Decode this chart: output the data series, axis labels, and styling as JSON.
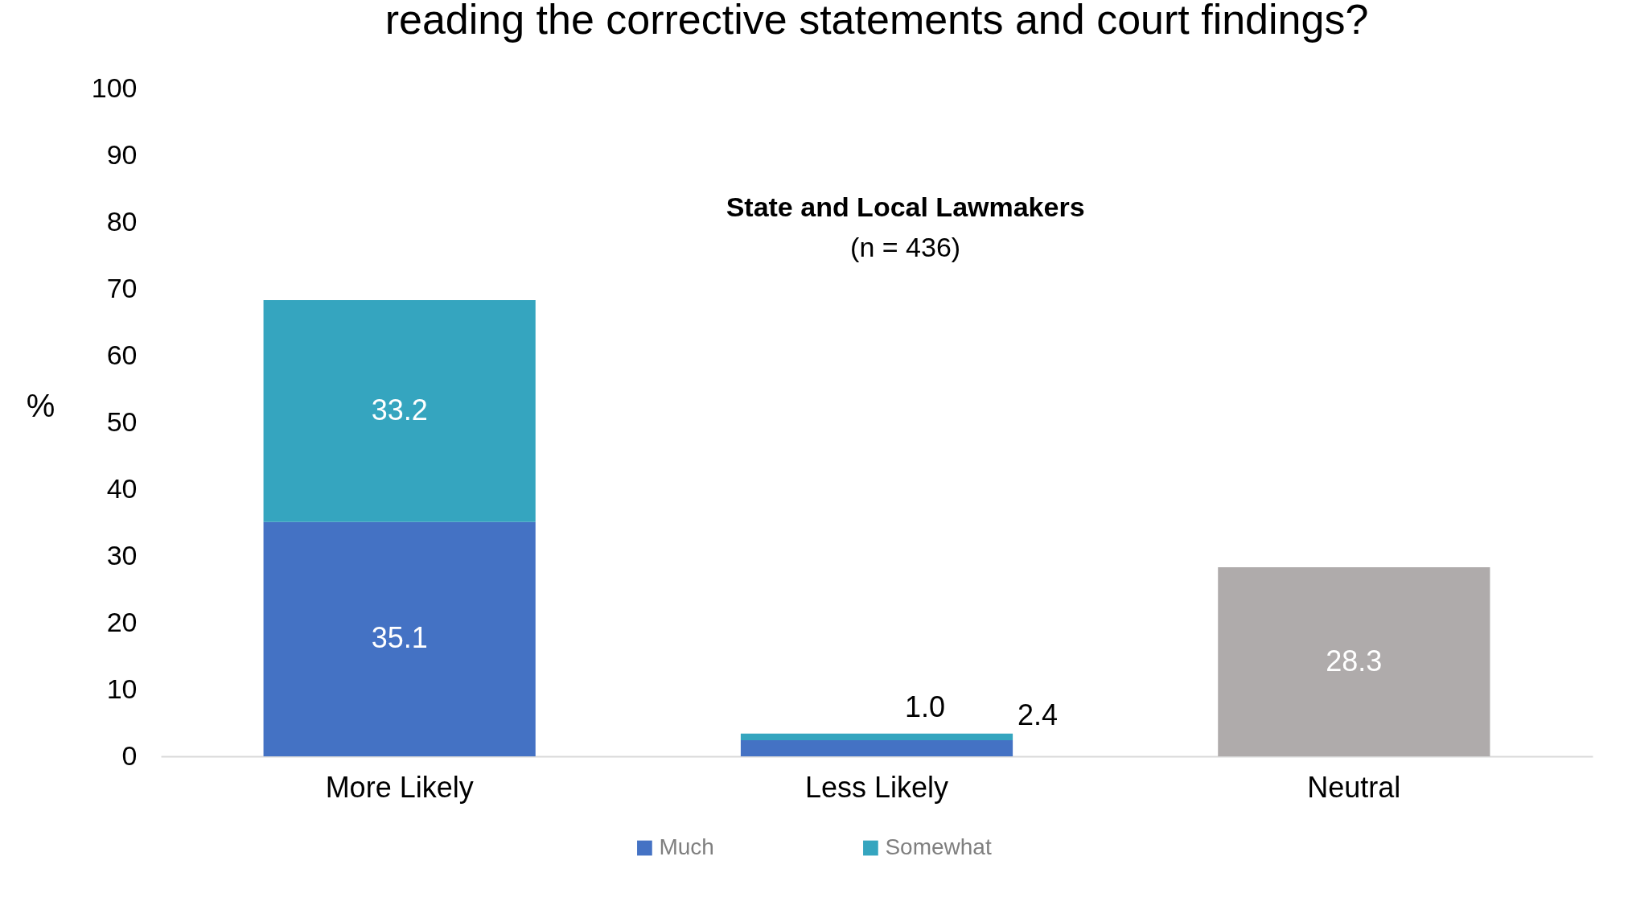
{
  "chart_data": {
    "type": "bar",
    "title": "reading the corrective statements and court findings?",
    "subtitle": "State and Local Lawmakers",
    "annotations": [
      "(n = 436)"
    ],
    "ylabel": "%",
    "categories": [
      "More Likely",
      "Less Likely",
      "Neutral"
    ],
    "stacked": true,
    "series": [
      {
        "name": "Much",
        "color": "#4472c4",
        "values": [
          35.1,
          2.4,
          null
        ],
        "value_labels": [
          "35.1",
          "2.4",
          null
        ]
      },
      {
        "name": "Somewhat",
        "color": "#35a5bf",
        "values": [
          33.2,
          1.0,
          null
        ],
        "value_labels": [
          "33.2",
          "1.0",
          null
        ]
      },
      {
        "color": "#afabab",
        "values": [
          null,
          null,
          28.3
        ],
        "value_labels": [
          null,
          null,
          "28.3"
        ]
      }
    ],
    "ylim": [
      0,
      100
    ],
    "yticks": [
      0,
      10,
      20,
      30,
      40,
      50,
      60,
      70,
      80,
      90,
      100
    ],
    "grid": false,
    "legend": "bottom"
  }
}
